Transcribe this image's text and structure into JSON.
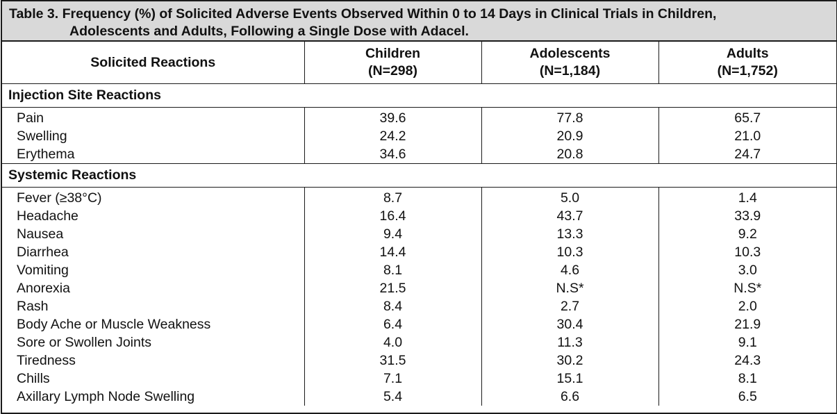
{
  "caption": {
    "line1": "Table 3. Frequency (%) of Solicited Adverse Events Observed Within 0 to 14 Days in Clinical Trials in Children,",
    "line2": "Adolescents and Adults, Following a Single Dose with Adacel."
  },
  "columns": {
    "reaction": "Solicited Reactions",
    "children": {
      "name": "Children",
      "n": "(N=298)"
    },
    "adolescents": {
      "name": "Adolescents",
      "n": "(N=1,184)"
    },
    "adults": {
      "name": "Adults",
      "n": "(N=1,752)"
    }
  },
  "sections": {
    "injection": {
      "title": "Injection Site Reactions",
      "rows": [
        {
          "label": "Pain",
          "children": "39.6",
          "adolescents": "77.8",
          "adults": "65.7"
        },
        {
          "label": "Swelling",
          "children": "24.2",
          "adolescents": "20.9",
          "adults": "21.0"
        },
        {
          "label": "Erythema",
          "children": "34.6",
          "adolescents": "20.8",
          "adults": "24.7"
        }
      ]
    },
    "systemic": {
      "title": "Systemic Reactions",
      "rows": [
        {
          "label": "Fever (≥38°C)",
          "children": "8.7",
          "adolescents": "5.0",
          "adults": "1.4"
        },
        {
          "label": "Headache",
          "children": "16.4",
          "adolescents": "43.7",
          "adults": "33.9"
        },
        {
          "label": "Nausea",
          "children": "9.4",
          "adolescents": "13.3",
          "adults": "9.2"
        },
        {
          "label": "Diarrhea",
          "children": "14.4",
          "adolescents": "10.3",
          "adults": "10.3"
        },
        {
          "label": "Vomiting",
          "children": "8.1",
          "adolescents": "4.6",
          "adults": "3.0"
        },
        {
          "label": "Anorexia",
          "children": "21.5",
          "adolescents": "N.S*",
          "adults": "N.S*"
        },
        {
          "label": "Rash",
          "children": "8.4",
          "adolescents": "2.7",
          "adults": "2.0"
        },
        {
          "label": "Body Ache or Muscle Weakness",
          "children": "6.4",
          "adolescents": "30.4",
          "adults": "21.9"
        },
        {
          "label": "Sore or Swollen Joints",
          "children": "4.0",
          "adolescents": "11.3",
          "adults": "9.1"
        },
        {
          "label": "Tiredness",
          "children": "31.5",
          "adolescents": "30.2",
          "adults": "24.3"
        },
        {
          "label": "Chills",
          "children": "7.1",
          "adolescents": "15.1",
          "adults": "8.1"
        },
        {
          "label": "Axillary Lymph Node Swelling",
          "children": "5.4",
          "adolescents": "6.6",
          "adults": "6.5"
        }
      ]
    }
  }
}
